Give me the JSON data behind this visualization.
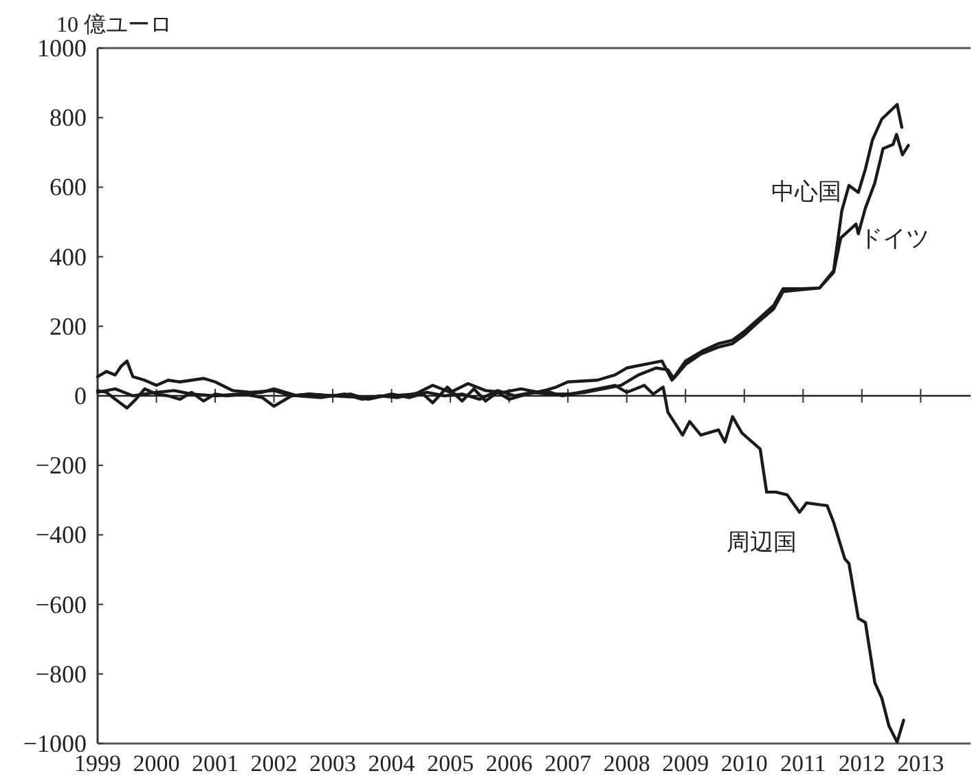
{
  "chart_data": {
    "type": "line",
    "ylabel": "10 億ユーロ",
    "xlim": [
      1999,
      2013.85
    ],
    "xticks": [
      1999,
      2000,
      2001,
      2002,
      2003,
      2004,
      2005,
      2006,
      2007,
      2008,
      2009,
      2010,
      2011,
      2012,
      2013
    ],
    "ylim": [
      -1000,
      1000
    ],
    "yticks": [
      -1000,
      -800,
      -600,
      -400,
      -200,
      0,
      200,
      400,
      600,
      800,
      1000
    ],
    "grid": false,
    "line_style": "solid",
    "ref_lines": [
      {
        "axis": "y",
        "value": 0
      }
    ],
    "series": [
      {
        "name": "ドイツ",
        "color": "#1a1a1a",
        "x": [
          1999.0,
          1999.15,
          1999.3,
          1999.5,
          1999.65,
          1999.8,
          2000.0,
          2000.2,
          2000.4,
          2000.6,
          2000.8,
          2001.0,
          2001.2,
          2001.5,
          2001.8,
          2002.0,
          2002.3,
          2002.6,
          2003.0,
          2003.3,
          2003.6,
          2004.0,
          2004.3,
          2004.6,
          2004.9,
          2005.2,
          2005.5,
          2005.8,
          2006.1,
          2006.4,
          2006.7,
          2007.0,
          2007.3,
          2007.6,
          2007.9,
          2008.2,
          2008.5,
          2008.7,
          2008.8,
          2009.0,
          2009.26,
          2009.56,
          2009.8,
          2010.0,
          2010.27,
          2010.5,
          2010.66,
          2010.97,
          2011.28,
          2011.52,
          2011.64,
          2011.9,
          2011.94,
          2012.06,
          2012.22,
          2012.36,
          2012.53,
          2012.59,
          2012.69,
          2012.79
        ],
        "values": [
          15,
          10,
          -10,
          -35,
          -10,
          20,
          5,
          0,
          -10,
          10,
          -15,
          5,
          0,
          5,
          -5,
          -30,
          0,
          5,
          0,
          5,
          -10,
          5,
          -5,
          10,
          0,
          5,
          -10,
          15,
          0,
          10,
          5,
          5,
          10,
          20,
          30,
          60,
          80,
          75,
          50,
          90,
          120,
          140,
          150,
          175,
          217,
          250,
          300,
          305,
          310,
          355,
          454,
          494,
          466,
          540,
          612,
          711,
          723,
          752,
          693,
          720
        ]
      },
      {
        "name": "中心国",
        "color": "#1a1a1a",
        "x": [
          1999.0,
          1999.15,
          1999.3,
          1999.4,
          1999.5,
          1999.6,
          1999.8,
          2000.0,
          2000.2,
          2000.4,
          2000.6,
          2000.8,
          2001.0,
          2001.3,
          2001.6,
          2002.0,
          2002.3,
          2002.6,
          2003.0,
          2003.5,
          2004.0,
          2004.4,
          2004.7,
          2005.0,
          2005.3,
          2005.6,
          2005.9,
          2006.2,
          2006.5,
          2006.8,
          2007.0,
          2007.5,
          2007.8,
          2008.0,
          2008.3,
          2008.6,
          2008.77,
          2009.0,
          2009.3,
          2009.56,
          2009.8,
          2010.0,
          2010.27,
          2010.5,
          2010.66,
          2010.97,
          2011.28,
          2011.52,
          2011.66,
          2011.78,
          2011.94,
          2012.06,
          2012.18,
          2012.34,
          2012.6,
          2012.68
        ],
        "values": [
          55,
          70,
          60,
          85,
          100,
          55,
          45,
          30,
          45,
          40,
          45,
          50,
          40,
          15,
          10,
          15,
          0,
          5,
          0,
          -5,
          0,
          5,
          30,
          10,
          35,
          15,
          10,
          20,
          10,
          25,
          40,
          45,
          60,
          80,
          90,
          100,
          45,
          100,
          130,
          150,
          160,
          185,
          225,
          260,
          308,
          308,
          310,
          360,
          533,
          605,
          585,
          652,
          736,
          796,
          838,
          772
        ]
      },
      {
        "name": "周辺国",
        "color": "#1a1a1a",
        "x": [
          1999.0,
          1999.3,
          1999.6,
          2000.0,
          2000.3,
          2000.6,
          2001.0,
          2001.4,
          2001.8,
          2002.0,
          2002.4,
          2002.8,
          2003.2,
          2003.5,
          2003.8,
          2004.1,
          2004.5,
          2004.7,
          2004.95,
          2005.2,
          2005.4,
          2005.6,
          2005.8,
          2006.0,
          2006.3,
          2006.6,
          2006.9,
          2007.2,
          2007.5,
          2007.8,
          2008.0,
          2008.3,
          2008.45,
          2008.62,
          2008.7,
          2008.95,
          2009.07,
          2009.26,
          2009.56,
          2009.67,
          2009.8,
          2009.96,
          2010.27,
          2010.38,
          2010.54,
          2010.73,
          2010.94,
          2011.06,
          2011.41,
          2011.52,
          2011.71,
          2011.78,
          2011.94,
          2012.06,
          2012.22,
          2012.34,
          2012.46,
          2012.6,
          2012.71
        ],
        "values": [
          10,
          20,
          0,
          10,
          15,
          5,
          0,
          5,
          10,
          20,
          0,
          -5,
          5,
          -10,
          0,
          -5,
          10,
          -20,
          25,
          -15,
          20,
          -15,
          10,
          -10,
          5,
          15,
          0,
          10,
          20,
          30,
          10,
          30,
          5,
          25,
          -47,
          -113,
          -74,
          -113,
          -98,
          -133,
          -60,
          -107,
          -153,
          -277,
          -277,
          -285,
          -335,
          -308,
          -316,
          -364,
          -469,
          -482,
          -640,
          -652,
          -825,
          -870,
          -949,
          -996,
          -933
        ]
      }
    ]
  }
}
